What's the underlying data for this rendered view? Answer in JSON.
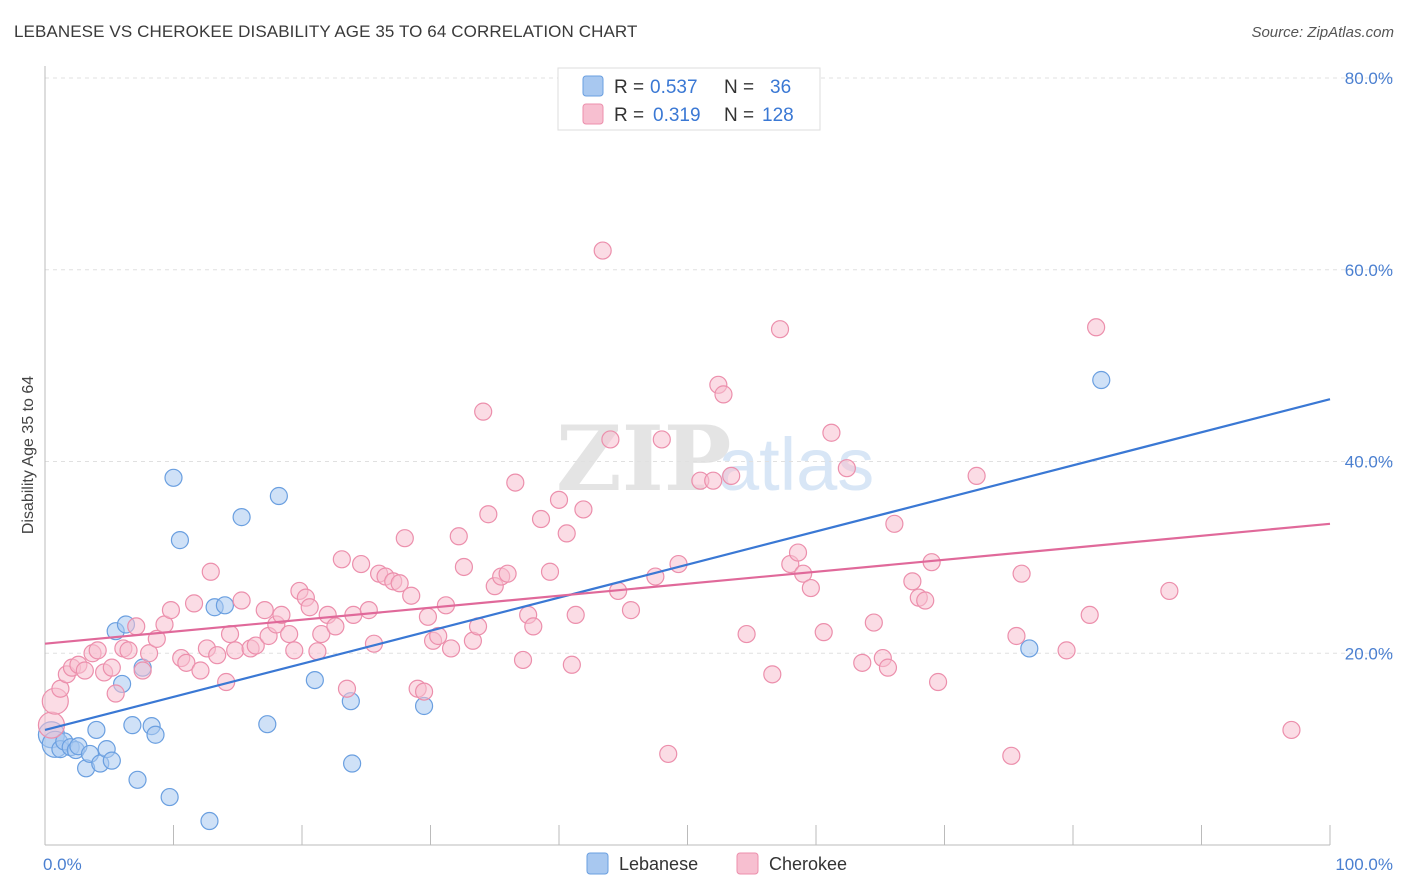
{
  "header": {
    "title": "LEBANESE VS CHEROKEE DISABILITY AGE 35 TO 64 CORRELATION CHART",
    "source": "Source: ZipAtlas.com"
  },
  "watermark": {
    "zip": "ZIP",
    "atlas": "atlas"
  },
  "chart_data": {
    "type": "scatter",
    "ylabel": "Disability Age 35 to 64",
    "xlim": [
      0,
      100
    ],
    "ylim": [
      0,
      80
    ],
    "x_tick_labels": [
      "0.0%",
      "100.0%"
    ],
    "y_ticks": [
      20,
      40,
      60,
      80
    ],
    "y_tick_labels": [
      "20.0%",
      "40.0%",
      "60.0%",
      "80.0%"
    ],
    "grid": true,
    "legend": {
      "placement": "top-center",
      "rows": [
        {
          "r_label": "R =",
          "r_value": "0.537",
          "n_label": "N =",
          "n_value": "36"
        },
        {
          "r_label": "R =",
          "r_value": "0.319",
          "n_label": "N =",
          "n_value": "128"
        }
      ]
    },
    "series": [
      {
        "name": "Lebanese",
        "color": "#a8c8f0",
        "stroke": "#6a9fe0",
        "trend_color": "#3a78d4",
        "trend": {
          "x": [
            0,
            100
          ],
          "y": [
            12.0,
            46.5
          ]
        },
        "points": [
          [
            0.5,
            11.5
          ],
          [
            0.8,
            10.5
          ],
          [
            1.2,
            10.0
          ],
          [
            1.5,
            10.8
          ],
          [
            2.0,
            10.2
          ],
          [
            2.4,
            9.9
          ],
          [
            2.6,
            10.3
          ],
          [
            3.2,
            8.0
          ],
          [
            3.5,
            9.5
          ],
          [
            4.0,
            12.0
          ],
          [
            4.3,
            8.5
          ],
          [
            4.8,
            10.0
          ],
          [
            5.2,
            8.8
          ],
          [
            5.5,
            22.3
          ],
          [
            6.0,
            16.8
          ],
          [
            6.3,
            23.0
          ],
          [
            6.8,
            12.5
          ],
          [
            7.2,
            6.8
          ],
          [
            7.6,
            18.5
          ],
          [
            8.3,
            12.4
          ],
          [
            8.6,
            11.5
          ],
          [
            9.7,
            5.0
          ],
          [
            10.0,
            38.3
          ],
          [
            10.5,
            31.8
          ],
          [
            12.8,
            2.5
          ],
          [
            13.2,
            24.8
          ],
          [
            14.0,
            25.0
          ],
          [
            15.3,
            34.2
          ],
          [
            17.3,
            12.6
          ],
          [
            18.2,
            36.4
          ],
          [
            21.0,
            17.2
          ],
          [
            23.8,
            15.0
          ],
          [
            23.9,
            8.5
          ],
          [
            29.5,
            14.5
          ],
          [
            76.6,
            20.5
          ],
          [
            82.2,
            48.5
          ]
        ]
      },
      {
        "name": "Cherokee",
        "color": "#f7bfd0",
        "stroke": "#ec8fac",
        "trend_color": "#e0699a",
        "trend": {
          "x": [
            0,
            100
          ],
          "y": [
            21.0,
            33.5
          ]
        },
        "points": [
          [
            0.5,
            12.5
          ],
          [
            0.8,
            15.0
          ],
          [
            1.2,
            16.3
          ],
          [
            1.7,
            17.8
          ],
          [
            2.1,
            18.5
          ],
          [
            2.6,
            18.8
          ],
          [
            3.1,
            18.2
          ],
          [
            3.7,
            20.0
          ],
          [
            4.1,
            20.3
          ],
          [
            4.6,
            18.0
          ],
          [
            5.2,
            18.5
          ],
          [
            5.5,
            15.8
          ],
          [
            6.1,
            20.5
          ],
          [
            6.5,
            20.3
          ],
          [
            7.1,
            22.8
          ],
          [
            7.6,
            18.2
          ],
          [
            8.1,
            20.0
          ],
          [
            8.7,
            21.5
          ],
          [
            9.3,
            23.0
          ],
          [
            9.8,
            24.5
          ],
          [
            10.6,
            19.5
          ],
          [
            11.0,
            19.0
          ],
          [
            11.6,
            25.2
          ],
          [
            12.1,
            18.2
          ],
          [
            12.6,
            20.5
          ],
          [
            12.9,
            28.5
          ],
          [
            13.4,
            19.8
          ],
          [
            14.1,
            17.0
          ],
          [
            14.4,
            22.0
          ],
          [
            14.8,
            20.3
          ],
          [
            15.3,
            25.5
          ],
          [
            16.0,
            20.5
          ],
          [
            16.4,
            20.8
          ],
          [
            17.1,
            24.5
          ],
          [
            17.4,
            21.8
          ],
          [
            18.0,
            23.0
          ],
          [
            18.4,
            24.0
          ],
          [
            19.0,
            22.0
          ],
          [
            19.4,
            20.3
          ],
          [
            19.8,
            26.5
          ],
          [
            20.3,
            25.8
          ],
          [
            20.6,
            24.8
          ],
          [
            21.2,
            20.2
          ],
          [
            21.5,
            22.0
          ],
          [
            22.0,
            24.0
          ],
          [
            22.6,
            22.8
          ],
          [
            23.1,
            29.8
          ],
          [
            23.5,
            16.3
          ],
          [
            24.0,
            24.0
          ],
          [
            24.6,
            29.3
          ],
          [
            25.2,
            24.5
          ],
          [
            25.6,
            21.0
          ],
          [
            26.0,
            28.3
          ],
          [
            26.5,
            28.0
          ],
          [
            27.1,
            27.5
          ],
          [
            27.6,
            27.3
          ],
          [
            28.0,
            32.0
          ],
          [
            28.5,
            26.0
          ],
          [
            29.0,
            16.3
          ],
          [
            29.5,
            16.0
          ],
          [
            29.8,
            23.8
          ],
          [
            30.2,
            21.3
          ],
          [
            30.6,
            21.8
          ],
          [
            31.2,
            25.0
          ],
          [
            31.6,
            20.5
          ],
          [
            32.2,
            32.2
          ],
          [
            32.6,
            29.0
          ],
          [
            33.3,
            21.3
          ],
          [
            33.7,
            22.8
          ],
          [
            34.1,
            45.2
          ],
          [
            34.5,
            34.5
          ],
          [
            35.0,
            27.0
          ],
          [
            35.5,
            28.0
          ],
          [
            36.0,
            28.3
          ],
          [
            36.6,
            37.8
          ],
          [
            37.2,
            19.3
          ],
          [
            37.6,
            24.0
          ],
          [
            38.0,
            22.8
          ],
          [
            38.6,
            34.0
          ],
          [
            39.3,
            28.5
          ],
          [
            40.0,
            36.0
          ],
          [
            40.6,
            32.5
          ],
          [
            41.0,
            18.8
          ],
          [
            41.3,
            24.0
          ],
          [
            41.9,
            35.0
          ],
          [
            43.4,
            62.0
          ],
          [
            44.0,
            42.3
          ],
          [
            44.6,
            26.5
          ],
          [
            45.6,
            24.5
          ],
          [
            47.5,
            28.0
          ],
          [
            48.0,
            42.3
          ],
          [
            48.5,
            9.5
          ],
          [
            49.3,
            29.3
          ],
          [
            51.0,
            38.0
          ],
          [
            52.0,
            38.0
          ],
          [
            52.4,
            48.0
          ],
          [
            52.8,
            47.0
          ],
          [
            53.4,
            38.5
          ],
          [
            54.6,
            22.0
          ],
          [
            56.6,
            17.8
          ],
          [
            57.2,
            53.8
          ],
          [
            58.0,
            29.3
          ],
          [
            58.6,
            30.5
          ],
          [
            59.0,
            28.3
          ],
          [
            59.6,
            26.8
          ],
          [
            60.6,
            22.2
          ],
          [
            61.2,
            43.0
          ],
          [
            62.4,
            39.3
          ],
          [
            63.6,
            19.0
          ],
          [
            64.5,
            23.2
          ],
          [
            65.2,
            19.5
          ],
          [
            65.6,
            18.5
          ],
          [
            66.1,
            33.5
          ],
          [
            67.5,
            27.5
          ],
          [
            68.0,
            25.8
          ],
          [
            68.5,
            25.5
          ],
          [
            69.0,
            29.5
          ],
          [
            69.5,
            17.0
          ],
          [
            72.5,
            38.5
          ],
          [
            75.2,
            9.3
          ],
          [
            75.6,
            21.8
          ],
          [
            76.0,
            28.3
          ],
          [
            79.5,
            20.3
          ],
          [
            81.3,
            24.0
          ],
          [
            81.8,
            54.0
          ],
          [
            87.5,
            26.5
          ],
          [
            97.0,
            12.0
          ]
        ]
      }
    ]
  },
  "bottom_legend": [
    {
      "label": "Lebanese",
      "color": "#a8c8f0",
      "stroke": "#6a9fe0"
    },
    {
      "label": "Cherokee",
      "color": "#f7bfd0",
      "stroke": "#ec8fac"
    }
  ]
}
